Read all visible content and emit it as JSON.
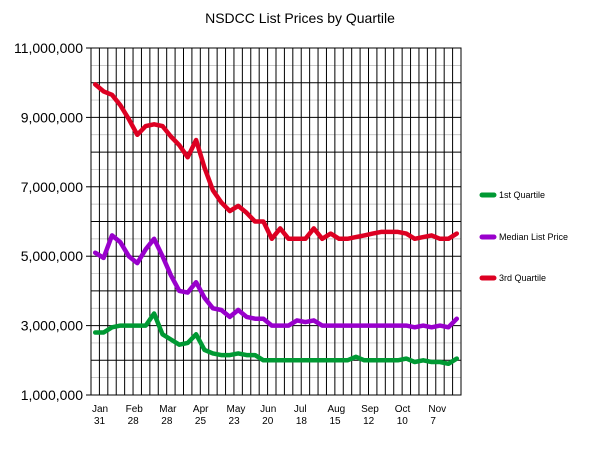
{
  "chart_data": {
    "type": "line",
    "title": "NSDCC List Prices by Quartile",
    "xlabel": "",
    "ylabel": "",
    "ylim": [
      1000000,
      11000000
    ],
    "yticks": [
      {
        "value": 1000000,
        "label": "1,000,000"
      },
      {
        "value": 3000000,
        "label": "3,000,000"
      },
      {
        "value": 5000000,
        "label": "5,000,000"
      },
      {
        "value": 7000000,
        "label": "7,000,000"
      },
      {
        "value": 9000000,
        "label": "9,000,000"
      },
      {
        "value": 11000000,
        "label": "11,000,000"
      }
    ],
    "xticks": [
      {
        "index": 0,
        "line1": "Jan",
        "line2": "31"
      },
      {
        "index": 4,
        "line1": "Feb",
        "line2": "28"
      },
      {
        "index": 8,
        "line1": "Mar",
        "line2": "28"
      },
      {
        "index": 12,
        "line1": "Apr",
        "line2": "25"
      },
      {
        "index": 16,
        "line1": "May",
        "line2": "23"
      },
      {
        "index": 20,
        "line1": "Jun",
        "line2": "20"
      },
      {
        "index": 24,
        "line1": "Jul",
        "line2": "18"
      },
      {
        "index": 28,
        "line1": "Aug",
        "line2": "15"
      },
      {
        "index": 32,
        "line1": "Sep",
        "line2": "12"
      },
      {
        "index": 36,
        "line1": "Oct",
        "line2": "10"
      },
      {
        "index": 40,
        "line1": "Nov",
        "line2": "7"
      }
    ],
    "n_points": 44,
    "grid": true,
    "legend_position": "right",
    "series": [
      {
        "name": "1st Quartile",
        "color": "#009933",
        "values": [
          2800000,
          2800000,
          2950000,
          3000000,
          3000000,
          3000000,
          3000000,
          3350000,
          2750000,
          2600000,
          2450000,
          2500000,
          2750000,
          2300000,
          2200000,
          2150000,
          2150000,
          2200000,
          2150000,
          2150000,
          2000000,
          2000000,
          2000000,
          2000000,
          2000000,
          2000000,
          2000000,
          2000000,
          2000000,
          2000000,
          2000000,
          2100000,
          2000000,
          2000000,
          2000000,
          2000000,
          2000000,
          2050000,
          1950000,
          2000000,
          1950000,
          1950000,
          1900000,
          2050000
        ]
      },
      {
        "name": "Median List Price",
        "color": "#9900cc",
        "values": [
          5100000,
          4950000,
          5600000,
          5400000,
          5000000,
          4800000,
          5200000,
          5500000,
          5000000,
          4450000,
          4000000,
          3950000,
          4250000,
          3800000,
          3500000,
          3450000,
          3250000,
          3450000,
          3250000,
          3200000,
          3200000,
          3000000,
          3000000,
          3000000,
          3150000,
          3100000,
          3150000,
          3000000,
          3000000,
          3000000,
          3000000,
          3000000,
          3000000,
          3000000,
          3000000,
          3000000,
          3000000,
          3000000,
          2950000,
          3000000,
          2950000,
          3000000,
          2950000,
          3200000
        ]
      },
      {
        "name": "3rd Quartile",
        "color": "#dd0022",
        "values": [
          9950000,
          9750000,
          9650000,
          9350000,
          8950000,
          8500000,
          8750000,
          8800000,
          8750000,
          8450000,
          8200000,
          7850000,
          8350000,
          7550000,
          6900000,
          6550000,
          6300000,
          6450000,
          6250000,
          6000000,
          6000000,
          5500000,
          5800000,
          5500000,
          5500000,
          5500000,
          5800000,
          5500000,
          5650000,
          5500000,
          5500000,
          5550000,
          5600000,
          5650000,
          5700000,
          5700000,
          5700000,
          5650000,
          5500000,
          5550000,
          5600000,
          5500000,
          5500000,
          5650000
        ]
      }
    ]
  }
}
